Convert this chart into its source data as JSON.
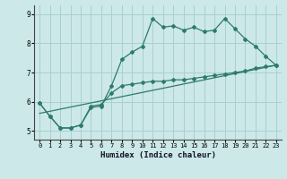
{
  "xlabel": "Humidex (Indice chaleur)",
  "bg_color": "#cce8e8",
  "grid_color": "#aacfcf",
  "line_color": "#2e7b6e",
  "xlim": [
    -0.5,
    23.5
  ],
  "ylim": [
    4.7,
    9.3
  ],
  "xticks": [
    0,
    1,
    2,
    3,
    4,
    5,
    6,
    7,
    8,
    9,
    10,
    11,
    12,
    13,
    14,
    15,
    16,
    17,
    18,
    19,
    20,
    21,
    22,
    23
  ],
  "yticks": [
    5,
    6,
    7,
    8,
    9
  ],
  "line1_x": [
    0,
    1,
    2,
    3,
    4,
    5,
    6,
    7,
    8,
    9,
    10,
    11,
    12,
    13,
    14,
    15,
    16,
    17,
    18,
    19,
    20,
    21,
    22,
    23
  ],
  "line1_y": [
    5.95,
    5.5,
    5.1,
    5.1,
    5.2,
    5.8,
    5.85,
    6.55,
    7.45,
    7.7,
    7.9,
    8.85,
    8.55,
    8.6,
    8.45,
    8.55,
    8.4,
    8.45,
    8.85,
    8.5,
    8.15,
    7.9,
    7.55,
    7.25
  ],
  "line2_x": [
    0,
    1,
    2,
    3,
    4,
    5,
    6,
    7,
    8,
    9,
    10,
    11,
    12,
    13,
    14,
    15,
    16,
    17,
    18,
    19,
    20,
    21,
    22,
    23
  ],
  "line2_y": [
    5.95,
    5.5,
    5.1,
    5.1,
    5.2,
    5.85,
    5.9,
    6.3,
    6.55,
    6.6,
    6.65,
    6.7,
    6.7,
    6.75,
    6.75,
    6.8,
    6.85,
    6.9,
    6.95,
    7.0,
    7.05,
    7.15,
    7.2,
    7.25
  ],
  "line3_x": [
    0,
    23
  ],
  "line3_y": [
    5.6,
    7.25
  ]
}
